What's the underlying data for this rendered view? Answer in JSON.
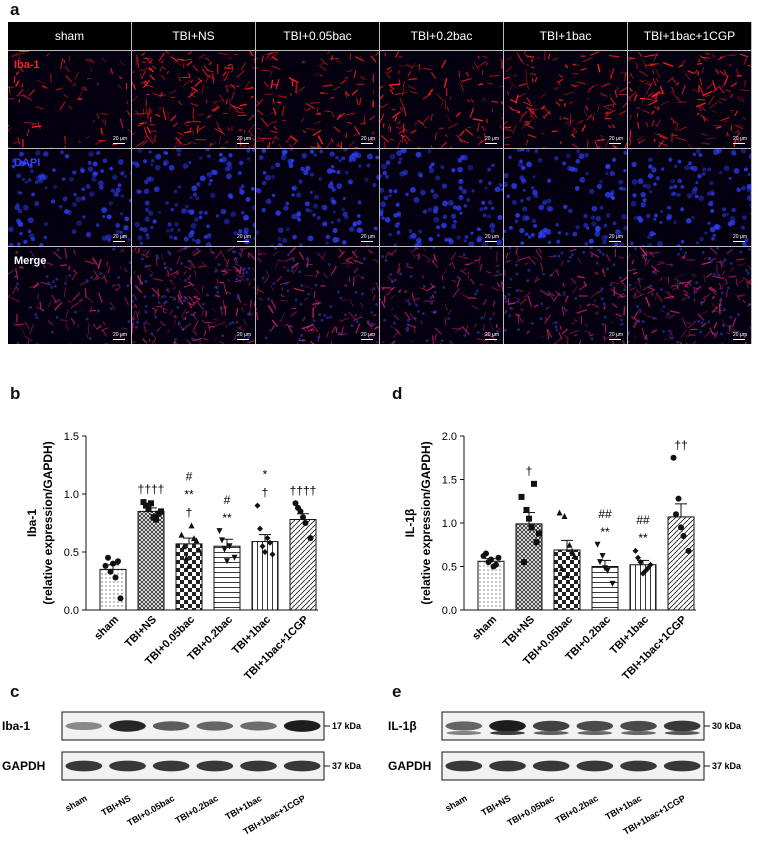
{
  "panel_a": {
    "letter": "a",
    "columns": [
      "sham",
      "TBI+NS",
      "TBI+0.05bac",
      "TBI+0.2bac",
      "TBI+1bac",
      "TBI+1bac+1CGP"
    ],
    "rows": [
      {
        "label": "Iba-1",
        "color": "#ff2020",
        "intensity": [
          0.25,
          0.9,
          0.55,
          0.5,
          0.6,
          0.8
        ]
      },
      {
        "label": "DAPI",
        "color": "#3040ff",
        "intensity": [
          0.45,
          0.5,
          0.5,
          0.5,
          0.5,
          0.5
        ]
      },
      {
        "label": "Merge",
        "color": "#c02060",
        "intensity": [
          0.3,
          0.85,
          0.5,
          0.45,
          0.5,
          0.75
        ]
      }
    ],
    "scale_label": "20 μm"
  },
  "chart_data": [
    {
      "type": "bar",
      "letter": "b",
      "ylabel": "Iba-1",
      "ylabel2": "(relative expression/GAPDH)",
      "categories": [
        "sham",
        "TBI+NS",
        "TBI+0.05bac",
        "TBI+0.2bac",
        "TBI+1bac",
        "TBI+1bac+1CGP"
      ],
      "values": [
        0.35,
        0.85,
        0.57,
        0.55,
        0.59,
        0.78
      ],
      "errors": [
        0.04,
        0.03,
        0.05,
        0.06,
        0.06,
        0.05
      ],
      "points": [
        [
          0.38,
          0.33,
          0.28,
          0.1,
          0.45,
          0.4,
          0.42
        ],
        [
          0.93,
          0.87,
          0.8,
          0.83,
          0.9,
          0.92,
          0.78,
          0.85
        ],
        [
          0.65,
          0.45,
          0.73,
          0.6,
          0.55,
          0.38,
          0.62,
          0.52
        ],
        [
          0.68,
          0.52,
          0.55,
          0.45,
          0.6,
          0.42
        ],
        [
          0.9,
          0.55,
          0.62,
          0.48,
          0.7,
          0.5,
          0.58
        ],
        [
          0.92,
          0.85,
          0.75,
          0.62,
          0.88,
          0.8
        ]
      ],
      "patterns": [
        "dots",
        "cross",
        "checker",
        "hlines",
        "vlines",
        "diag"
      ],
      "annotations": [
        [],
        [
          "††††"
        ],
        [
          "#",
          "**",
          "†"
        ],
        [
          "#",
          "**"
        ],
        [
          "*",
          "†"
        ],
        [
          "††††"
        ]
      ],
      "ylim": [
        0,
        1.5
      ],
      "yticks": [
        "0.0",
        "0.5",
        "1.0",
        "1.5"
      ]
    },
    {
      "type": "bar",
      "letter": "d",
      "ylabel": "IL-1β",
      "ylabel2": "(relative expression/GAPDH)",
      "categories": [
        "sham",
        "TBI+NS",
        "TBI+0.05bac",
        "TBI+0.2bac",
        "TBI+1bac",
        "TBI+1bac+1CGP"
      ],
      "values": [
        0.56,
        0.99,
        0.69,
        0.5,
        0.52,
        1.07
      ],
      "errors": [
        0.03,
        0.13,
        0.11,
        0.07,
        0.05,
        0.15
      ],
      "points": [
        [
          0.62,
          0.55,
          0.5,
          0.6,
          0.65,
          0.58,
          0.52
        ],
        [
          1.3,
          1.15,
          0.95,
          0.78,
          0.55,
          1.05,
          1.45,
          0.88
        ],
        [
          1.12,
          1.08,
          0.75,
          0.62,
          0.48,
          0.4,
          0.68
        ],
        [
          0.75,
          0.62,
          0.45,
          0.3,
          0.55,
          0.48
        ],
        [
          0.68,
          0.55,
          0.45,
          0.52,
          0.6,
          0.42,
          0.48
        ],
        [
          1.75,
          1.28,
          0.85,
          0.68,
          1.1,
          0.95
        ]
      ],
      "patterns": [
        "dots",
        "cross",
        "checker",
        "hlines",
        "vlines",
        "diag"
      ],
      "annotations": [
        [],
        [
          "†"
        ],
        [],
        [
          "##",
          "**"
        ],
        [
          "##",
          "**"
        ],
        [
          "††"
        ]
      ],
      "ylim": [
        0,
        2.0
      ],
      "yticks": [
        "0.0",
        "0.5",
        "1.0",
        "1.5",
        "2.0"
      ]
    }
  ],
  "blot_c": {
    "letter": "c",
    "rows": [
      {
        "label": "Iba-1",
        "kda": "17 kDa",
        "bands": [
          0.35,
          0.9,
          0.6,
          0.55,
          0.5,
          0.95
        ]
      },
      {
        "label": "GAPDH",
        "kda": "37 kDa",
        "bands": [
          0.8,
          0.8,
          0.8,
          0.8,
          0.8,
          0.8
        ]
      }
    ],
    "lanes": [
      "sham",
      "TBI+NS",
      "TBI+0.05bac",
      "TBI+0.2bac",
      "TBI+1bac",
      "TBI+1bac+1CGP"
    ]
  },
  "blot_e": {
    "letter": "e",
    "rows": [
      {
        "label": "IL-1β",
        "kda": "30 kDa",
        "bands": [
          0.55,
          0.95,
          0.75,
          0.7,
          0.7,
          0.8
        ]
      },
      {
        "label": "GAPDH",
        "kda": "37 kDa",
        "bands": [
          0.8,
          0.8,
          0.8,
          0.8,
          0.8,
          0.8
        ]
      }
    ],
    "lanes": [
      "sham",
      "TBI+NS",
      "TBI+0.05bac",
      "TBI+0.2bac",
      "TBI+1bac",
      "TBI+1bac+1CGP"
    ]
  }
}
